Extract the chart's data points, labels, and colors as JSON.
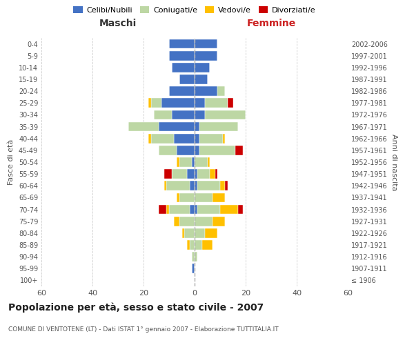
{
  "age_groups": [
    "100+",
    "95-99",
    "90-94",
    "85-89",
    "80-84",
    "75-79",
    "70-74",
    "65-69",
    "60-64",
    "55-59",
    "50-54",
    "45-49",
    "40-44",
    "35-39",
    "30-34",
    "25-29",
    "20-24",
    "15-19",
    "10-14",
    "5-9",
    "0-4"
  ],
  "birth_years": [
    "≤ 1906",
    "1907-1911",
    "1912-1916",
    "1917-1921",
    "1922-1926",
    "1927-1931",
    "1932-1936",
    "1937-1941",
    "1942-1946",
    "1947-1951",
    "1952-1956",
    "1957-1961",
    "1962-1966",
    "1967-1971",
    "1972-1976",
    "1977-1981",
    "1982-1986",
    "1987-1991",
    "1992-1996",
    "1997-2001",
    "2002-2006"
  ],
  "males": {
    "celibi": [
      0,
      1,
      0,
      0,
      0,
      0,
      2,
      0,
      2,
      3,
      1,
      7,
      8,
      14,
      9,
      13,
      10,
      6,
      9,
      10,
      10
    ],
    "coniugati": [
      0,
      0,
      1,
      2,
      4,
      6,
      8,
      6,
      9,
      6,
      5,
      7,
      9,
      12,
      7,
      4,
      0,
      0,
      0,
      0,
      0
    ],
    "vedovi": [
      0,
      0,
      0,
      1,
      1,
      2,
      1,
      1,
      1,
      0,
      1,
      0,
      1,
      0,
      0,
      1,
      0,
      0,
      0,
      0,
      0
    ],
    "divorziati": [
      0,
      0,
      0,
      0,
      0,
      0,
      3,
      0,
      0,
      3,
      0,
      0,
      0,
      0,
      0,
      0,
      0,
      0,
      0,
      0,
      0
    ]
  },
  "females": {
    "nubili": [
      0,
      0,
      0,
      0,
      0,
      0,
      1,
      0,
      1,
      1,
      0,
      2,
      2,
      2,
      4,
      4,
      9,
      5,
      6,
      9,
      9
    ],
    "coniugate": [
      0,
      0,
      1,
      3,
      4,
      7,
      9,
      7,
      9,
      5,
      5,
      14,
      9,
      15,
      16,
      9,
      3,
      0,
      0,
      0,
      0
    ],
    "vedove": [
      0,
      0,
      0,
      4,
      5,
      5,
      7,
      5,
      2,
      2,
      1,
      0,
      1,
      0,
      0,
      0,
      0,
      0,
      0,
      0,
      0
    ],
    "divorziate": [
      0,
      0,
      0,
      0,
      0,
      0,
      2,
      0,
      1,
      1,
      0,
      3,
      0,
      0,
      0,
      2,
      0,
      0,
      0,
      0,
      0
    ]
  },
  "colors": {
    "celibi_nubili": "#4472c4",
    "coniugati": "#bdd7a4",
    "vedovi": "#ffc000",
    "divorziati": "#cc0000"
  },
  "xlim": 60,
  "title": "Popolazione per età, sesso e stato civile - 2007",
  "subtitle": "COMUNE DI VENTOTENE (LT) - Dati ISTAT 1° gennaio 2007 - Elaborazione TUTTITALIA.IT",
  "xlabel_left": "Maschi",
  "xlabel_right": "Femmine",
  "ylabel_left": "Fasce di età",
  "ylabel_right": "Anni di nascita",
  "legend_labels": [
    "Celibi/Nubili",
    "Coniugati/e",
    "Vedovi/e",
    "Divorziati/e"
  ]
}
